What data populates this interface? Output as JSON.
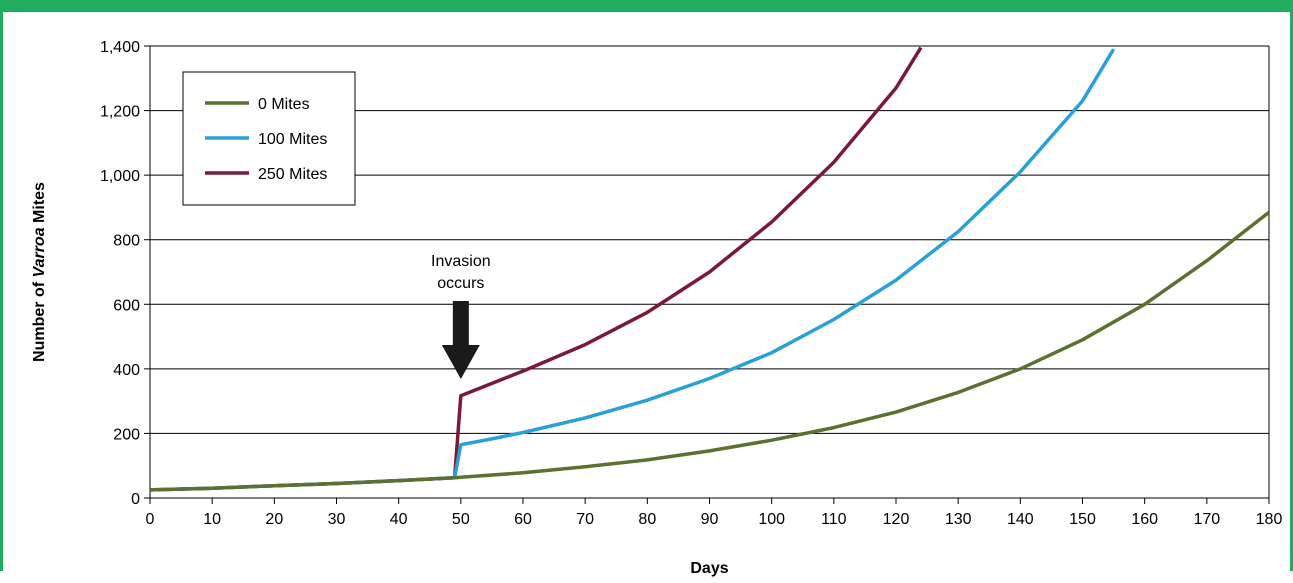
{
  "colors": {
    "frame": "#1fae5f",
    "gridline": "#000000",
    "arrow": "#1a1a1a"
  },
  "chart_data": {
    "type": "line",
    "title": "",
    "xlabel": "Days",
    "ylabel_prefix": "Number of ",
    "ylabel_italic": "Varroa",
    "ylabel_suffix": " Mites",
    "xlim": [
      0,
      180
    ],
    "ylim": [
      0,
      1400
    ],
    "x_ticks": [
      0,
      10,
      20,
      30,
      40,
      50,
      60,
      70,
      80,
      90,
      100,
      110,
      120,
      130,
      140,
      150,
      160,
      170,
      180
    ],
    "x_tick_labels": [
      "0",
      "10",
      "20",
      "30",
      "40",
      "50",
      "60",
      "70",
      "80",
      "90",
      "100",
      "110",
      "120",
      "130",
      "140",
      "150",
      "160",
      "170",
      "180"
    ],
    "y_ticks": [
      0,
      200,
      400,
      600,
      800,
      1000,
      1200,
      1400
    ],
    "y_tick_labels": [
      "0",
      "200",
      "400",
      "600",
      "800",
      "1,000",
      "1,200",
      "1,400"
    ],
    "grid": "horizontal",
    "legend_position": "top-left",
    "series": [
      {
        "name": "0 Mites",
        "color": "#5c7030",
        "points": [
          [
            0,
            25
          ],
          [
            10,
            30
          ],
          [
            20,
            38
          ],
          [
            30,
            45
          ],
          [
            40,
            54
          ],
          [
            49,
            63
          ],
          [
            50,
            64
          ],
          [
            60,
            78
          ],
          [
            70,
            97
          ],
          [
            80,
            118
          ],
          [
            90,
            146
          ],
          [
            100,
            179
          ],
          [
            110,
            218
          ],
          [
            120,
            266
          ],
          [
            130,
            327
          ],
          [
            140,
            400
          ],
          [
            150,
            490
          ],
          [
            160,
            600
          ],
          [
            170,
            735
          ],
          [
            180,
            885
          ]
        ]
      },
      {
        "name": "100 Mites",
        "color": "#29a0d8",
        "points": [
          [
            0,
            25
          ],
          [
            10,
            30
          ],
          [
            20,
            38
          ],
          [
            30,
            45
          ],
          [
            40,
            54
          ],
          [
            49,
            63
          ],
          [
            50,
            165
          ],
          [
            55,
            183
          ],
          [
            60,
            203
          ],
          [
            70,
            248
          ],
          [
            80,
            303
          ],
          [
            90,
            370
          ],
          [
            100,
            450
          ],
          [
            110,
            553
          ],
          [
            120,
            675
          ],
          [
            130,
            825
          ],
          [
            140,
            1010
          ],
          [
            150,
            1230
          ],
          [
            155,
            1390
          ]
        ]
      },
      {
        "name": "250 Mites",
        "color": "#7a1a35",
        "points": [
          [
            0,
            25
          ],
          [
            10,
            30
          ],
          [
            20,
            38
          ],
          [
            30,
            45
          ],
          [
            40,
            54
          ],
          [
            49,
            63
          ],
          [
            50,
            317
          ],
          [
            55,
            355
          ],
          [
            60,
            393
          ],
          [
            70,
            475
          ],
          [
            80,
            575
          ],
          [
            90,
            700
          ],
          [
            100,
            855
          ],
          [
            110,
            1040
          ],
          [
            120,
            1270
          ],
          [
            124,
            1395
          ]
        ]
      }
    ],
    "annotations": [
      {
        "lines": [
          "Invasion",
          "occurs"
        ],
        "x": 50,
        "type": "arrow-down"
      }
    ]
  }
}
